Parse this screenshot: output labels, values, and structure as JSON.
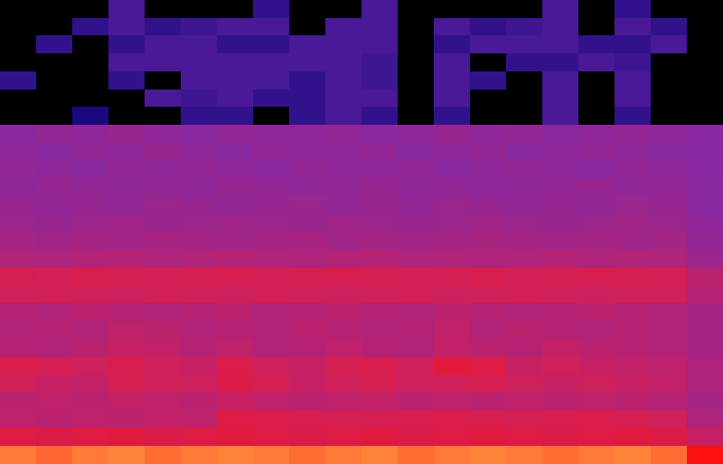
{
  "chart_data": {
    "type": "heatmap",
    "tick_labels": false,
    "value_range": [
      0,
      100
    ],
    "cells": [
      [
        0,
        0,
        0,
        30,
        0,
        0,
        0,
        25,
        0,
        0,
        30,
        0,
        0,
        0,
        0,
        30,
        0,
        25,
        0,
        0
      ],
      [
        0,
        0,
        25,
        30,
        25,
        28,
        30,
        30,
        0,
        30,
        30,
        0,
        30,
        25,
        28,
        30,
        0,
        30,
        25,
        0
      ],
      [
        0,
        25,
        0,
        25,
        30,
        30,
        25,
        25,
        30,
        30,
        30,
        0,
        25,
        30,
        30,
        30,
        25,
        25,
        30,
        0
      ],
      [
        0,
        0,
        0,
        30,
        30,
        30,
        30,
        30,
        30,
        30,
        28,
        0,
        30,
        0,
        25,
        25,
        30,
        28,
        0,
        0
      ],
      [
        25,
        0,
        0,
        25,
        0,
        30,
        30,
        30,
        25,
        30,
        28,
        0,
        30,
        25,
        0,
        30,
        0,
        30,
        0,
        0
      ],
      [
        0,
        0,
        0,
        0,
        30,
        28,
        30,
        25,
        25,
        30,
        30,
        0,
        30,
        0,
        0,
        30,
        0,
        30,
        0,
        0
      ],
      [
        0,
        0,
        20,
        0,
        0,
        25,
        25,
        0,
        25,
        30,
        25,
        0,
        25,
        0,
        0,
        30,
        0,
        25,
        0,
        0
      ],
      [
        44,
        46,
        45,
        47,
        45,
        44,
        46,
        45,
        45,
        46,
        44,
        45,
        47,
        45,
        46,
        44,
        45,
        46,
        45,
        43
      ],
      [
        45,
        44,
        46,
        45,
        47,
        45,
        44,
        46,
        45,
        45,
        46,
        44,
        45,
        46,
        44,
        45,
        46,
        45,
        44,
        43
      ],
      [
        46,
        45,
        44,
        46,
        45,
        46,
        45,
        44,
        46,
        45,
        45,
        46,
        44,
        45,
        46,
        45,
        44,
        46,
        45,
        43
      ],
      [
        45,
        47,
        46,
        45,
        46,
        45,
        47,
        46,
        45,
        46,
        47,
        45,
        46,
        45,
        45,
        46,
        47,
        45,
        46,
        44
      ],
      [
        47,
        46,
        47,
        46,
        48,
        47,
        46,
        47,
        48,
        46,
        47,
        46,
        48,
        47,
        46,
        47,
        46,
        48,
        47,
        44
      ],
      [
        48,
        47,
        48,
        49,
        47,
        48,
        49,
        48,
        47,
        49,
        48,
        47,
        48,
        49,
        48,
        47,
        48,
        49,
        48,
        45
      ],
      [
        50,
        49,
        50,
        49,
        51,
        50,
        49,
        50,
        51,
        49,
        50,
        49,
        50,
        51,
        50,
        49,
        50,
        49,
        50,
        46
      ],
      [
        53,
        52,
        53,
        54,
        52,
        53,
        54,
        53,
        52,
        53,
        54,
        52,
        53,
        52,
        53,
        54,
        52,
        53,
        52,
        48
      ],
      [
        62,
        61,
        63,
        62,
        61,
        62,
        63,
        61,
        62,
        63,
        62,
        61,
        62,
        63,
        61,
        62,
        63,
        62,
        61,
        55
      ],
      [
        60,
        61,
        60,
        59,
        61,
        60,
        59,
        61,
        60,
        59,
        60,
        61,
        59,
        60,
        61,
        60,
        59,
        60,
        60,
        54
      ],
      [
        54,
        53,
        55,
        54,
        53,
        54,
        55,
        53,
        54,
        55,
        54,
        53,
        55,
        54,
        53,
        54,
        55,
        54,
        53,
        50
      ],
      [
        53,
        54,
        53,
        56,
        55,
        53,
        54,
        53,
        55,
        54,
        53,
        54,
        56,
        53,
        55,
        54,
        53,
        54,
        53,
        50
      ],
      [
        54,
        53,
        55,
        58,
        57,
        54,
        56,
        53,
        54,
        56,
        54,
        53,
        57,
        55,
        54,
        57,
        55,
        54,
        53,
        50
      ],
      [
        64,
        62,
        60,
        63,
        60,
        58,
        64,
        59,
        58,
        62,
        63,
        60,
        68,
        66,
        58,
        60,
        58,
        57,
        56,
        52
      ],
      [
        60,
        58,
        57,
        62,
        60,
        59,
        65,
        62,
        58,
        60,
        62,
        59,
        60,
        62,
        59,
        58,
        59,
        58,
        57,
        52
      ],
      [
        55,
        56,
        55,
        57,
        56,
        55,
        58,
        56,
        55,
        56,
        57,
        55,
        56,
        55,
        56,
        55,
        56,
        55,
        54,
        50
      ],
      [
        56,
        55,
        56,
        55,
        57,
        56,
        66,
        64,
        63,
        62,
        62,
        63,
        64,
        63,
        62,
        63,
        64,
        62,
        60,
        52
      ],
      [
        66,
        65,
        66,
        67,
        65,
        66,
        67,
        66,
        65,
        66,
        67,
        65,
        66,
        67,
        66,
        65,
        66,
        67,
        65,
        58
      ],
      [
        90,
        88,
        90,
        91,
        89,
        90,
        91,
        90,
        89,
        90,
        91,
        89,
        90,
        91,
        90,
        89,
        90,
        91,
        89,
        80
      ]
    ]
  }
}
